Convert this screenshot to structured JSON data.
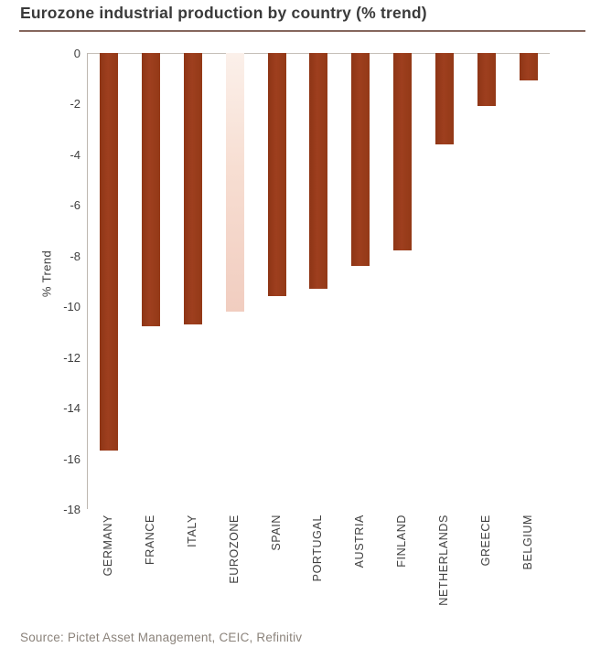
{
  "title": "Eurozone industrial production by country (% trend)",
  "source": "Source: Pictet Asset Management, CEIC, Refinitiv",
  "colors": {
    "bar": "#993A1C",
    "highlight_bar_top": "#FBF0EA",
    "highlight_bar_bottom": "#F1CDC0",
    "title_rule": "#6E5048",
    "axis_line": "#BDB7B0",
    "text": "#3F3F3F",
    "source_text": "#8B837B"
  },
  "chart_data": {
    "type": "bar",
    "title": "Eurozone industrial production by country (% trend)",
    "xlabel": "",
    "ylabel": "% Trend",
    "ylim": [
      -18,
      0
    ],
    "grid": false,
    "legend": false,
    "orientation": "vertical",
    "yticks": [
      "0",
      "-2",
      "-4",
      "-6",
      "-8",
      "-10",
      "-12",
      "-14",
      "-16",
      "-18"
    ],
    "categories": [
      "GERMANY",
      "FRANCE",
      "ITALY",
      "EUROZONE",
      "SPAIN",
      "PORTUGAL",
      "AUSTRIA",
      "FINLAND",
      "NETHERLANDS",
      "GREECE",
      "BELGIUM"
    ],
    "values": [
      -15.7,
      -10.8,
      -10.7,
      -10.2,
      -9.6,
      -9.3,
      -8.4,
      -7.8,
      -3.6,
      -2.1,
      -1.1
    ],
    "highlight_category": "EUROZONE"
  }
}
